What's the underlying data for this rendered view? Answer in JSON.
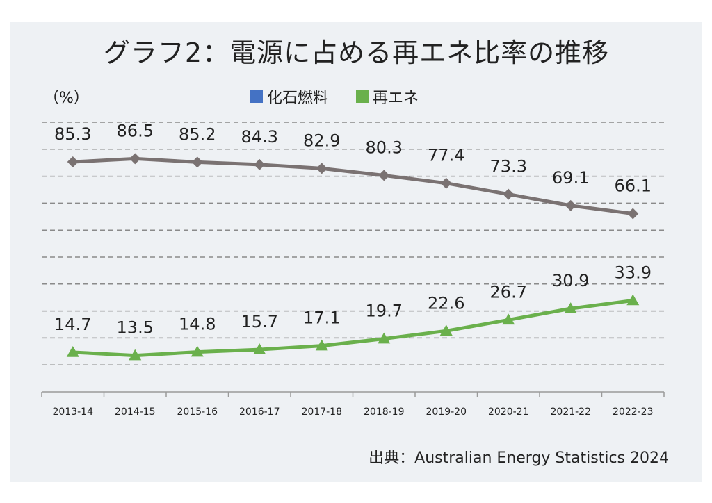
{
  "title": "グラフ2：電源に占める再エネ比率の推移",
  "unit_label": "（%）",
  "source": "出典：Australian Energy Statistics 2024",
  "colors": {
    "background": "#eef1f4",
    "fossil_line": "#7a7272",
    "renewable_line": "#6ab04c",
    "fossil_legend": "#4472c4",
    "renewable_legend": "#6ab04c",
    "grid": "#8a8a8a"
  },
  "chart_data": {
    "type": "line",
    "title": "グラフ2：電源に占める再エネ比率の推移",
    "ylabel": "（%）",
    "x": [
      "2013-14",
      "2014-15",
      "2015-16",
      "2016-17",
      "2017-18",
      "2018-19",
      "2019-20",
      "2020-21",
      "2021-22",
      "2022-23"
    ],
    "ylim": [
      0,
      100
    ],
    "grid": true,
    "legend_position": "top",
    "series": [
      {
        "name": "化石燃料",
        "marker": "diamond",
        "values": [
          85.3,
          86.5,
          85.2,
          84.3,
          82.9,
          80.3,
          77.4,
          73.3,
          69.1,
          66.1
        ]
      },
      {
        "name": "再エネ",
        "marker": "triangle",
        "values": [
          14.7,
          13.5,
          14.8,
          15.7,
          17.1,
          19.7,
          22.6,
          26.7,
          30.9,
          33.9
        ]
      }
    ]
  }
}
